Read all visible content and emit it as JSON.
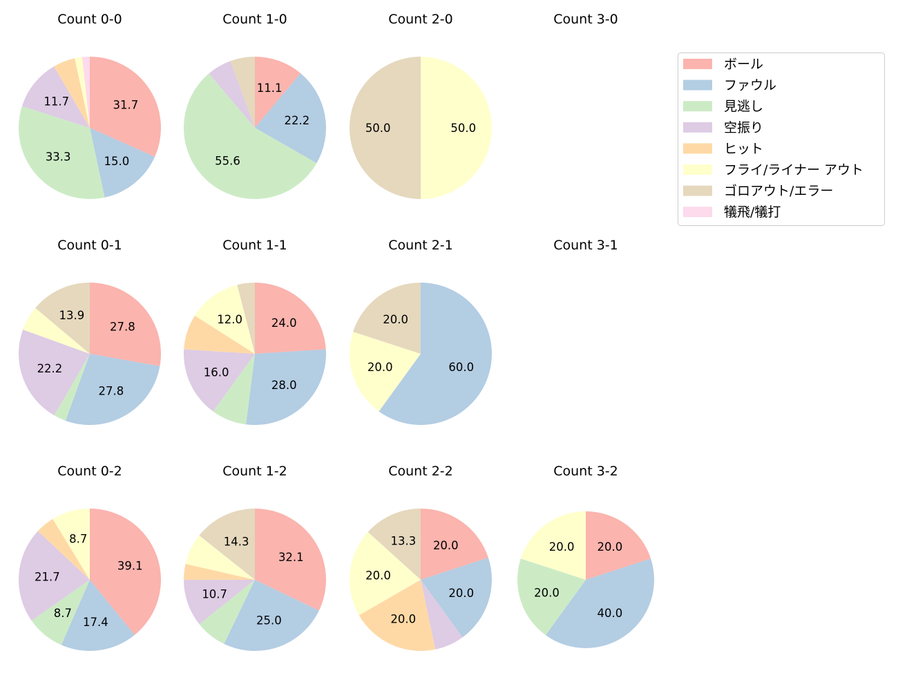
{
  "chart_data": {
    "type": "pie",
    "legend": {
      "placement": "top-right",
      "entries": [
        "ボール",
        "ファウル",
        "見逃し",
        "空振り",
        "ヒット",
        "フライ/ライナー アウト",
        "ゴロアウト/エラー",
        "犠飛/犠打"
      ]
    },
    "colors": [
      "#fbb4ae",
      "#b3cde3",
      "#ccebc5",
      "#decbe4",
      "#fed9a6",
      "#ffffcc",
      "#e5d8bd",
      "#fddaec"
    ],
    "pies": [
      {
        "title": "Count 0-0",
        "values": [
          31.7,
          15.0,
          33.3,
          11.7,
          5.0,
          1.7,
          0,
          1.7
        ]
      },
      {
        "title": "Count 1-0",
        "values": [
          11.1,
          22.2,
          55.6,
          5.6,
          0,
          0,
          5.6,
          0
        ]
      },
      {
        "title": "Count 2-0",
        "values": [
          0,
          0,
          0,
          0,
          0,
          50.0,
          50.0,
          0
        ]
      },
      {
        "title": "Count 3-0",
        "values": []
      },
      {
        "title": "Count 0-1",
        "values": [
          27.8,
          27.8,
          2.8,
          22.2,
          0,
          5.6,
          13.9,
          0
        ]
      },
      {
        "title": "Count 1-1",
        "values": [
          24.0,
          28.0,
          8.0,
          16.0,
          8.0,
          12.0,
          4.0,
          0
        ]
      },
      {
        "title": "Count 2-1",
        "values": [
          0,
          60.0,
          0,
          0,
          0,
          20.0,
          20.0,
          0
        ]
      },
      {
        "title": "Count 3-1",
        "values": []
      },
      {
        "title": "Count 0-2",
        "values": [
          39.1,
          17.4,
          8.7,
          21.7,
          4.3,
          8.7,
          0,
          0
        ]
      },
      {
        "title": "Count 1-2",
        "values": [
          32.1,
          25.0,
          7.1,
          10.7,
          3.6,
          7.1,
          14.3,
          0
        ]
      },
      {
        "title": "Count 2-2",
        "values": [
          20.0,
          20.0,
          0,
          6.7,
          20.0,
          20.0,
          13.3,
          0
        ]
      },
      {
        "title": "Count 3-2",
        "values": [
          20.0,
          40.0,
          20.0,
          0,
          0,
          20.0,
          0,
          0
        ]
      }
    ]
  }
}
